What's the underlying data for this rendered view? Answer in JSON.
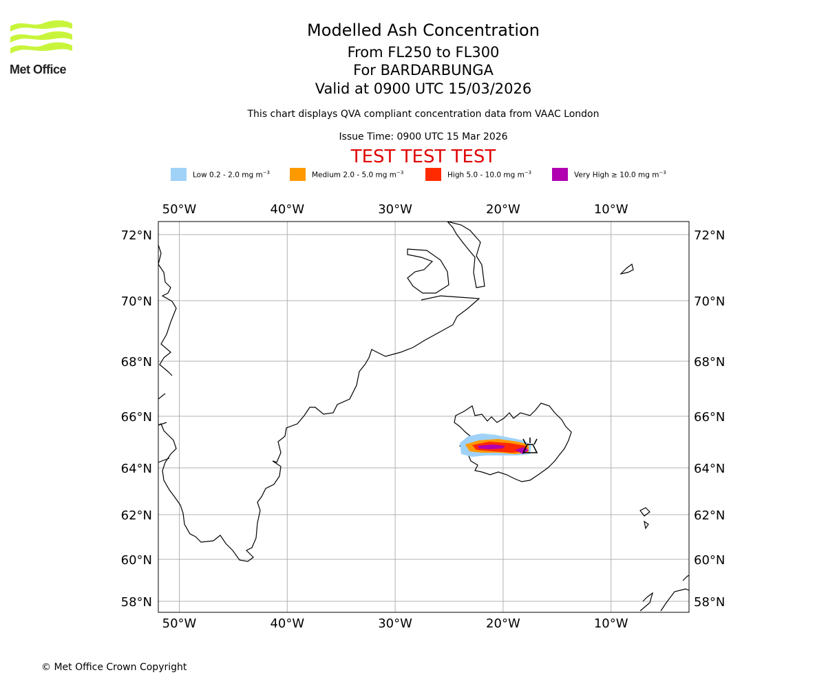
{
  "header": {
    "logo_text": "Met Office",
    "title": "Modelled Ash Concentration",
    "level": "From FL250 to FL300",
    "volcano": "For BARDARBUNGA",
    "valid": "Valid at 0900 UTC 15/03/2026",
    "note": "This chart displays QVA compliant concentration data from VAAC London",
    "issue": "Issue Time: 0900 UTC 15 Mar 2026",
    "test_banner": "TEST TEST TEST"
  },
  "legend": [
    {
      "label": "Low 0.2 - 2.0 mg m",
      "unit_exp": "−3",
      "color": "#a0d2f8"
    },
    {
      "label": "Medium 2.0 - 5.0 mg m",
      "unit_exp": "−3",
      "color": "#ff9900"
    },
    {
      "label": "High 5.0 - 10.0 mg m",
      "unit_exp": "−3",
      "color": "#ff2a00"
    },
    {
      "label": "Very High  ≥  10.0 mg m",
      "unit_exp": "−3",
      "color": "#b000b0"
    }
  ],
  "map": {
    "lon_ticks": [
      "50°W",
      "40°W",
      "30°W",
      "20°W",
      "10°W"
    ],
    "lat_ticks": [
      "72°N",
      "70°N",
      "68°N",
      "66°N",
      "64°N",
      "62°N",
      "60°N",
      "58°N"
    ],
    "lon_values": [
      -50,
      -40,
      -30,
      -20,
      -10
    ],
    "lat_values": [
      72,
      70,
      68,
      66,
      64,
      62,
      60,
      58
    ],
    "grid": true,
    "volcano_marker": "volcano-icon"
  },
  "footer": {
    "copyright": "© Met Office Crown Copyright"
  }
}
